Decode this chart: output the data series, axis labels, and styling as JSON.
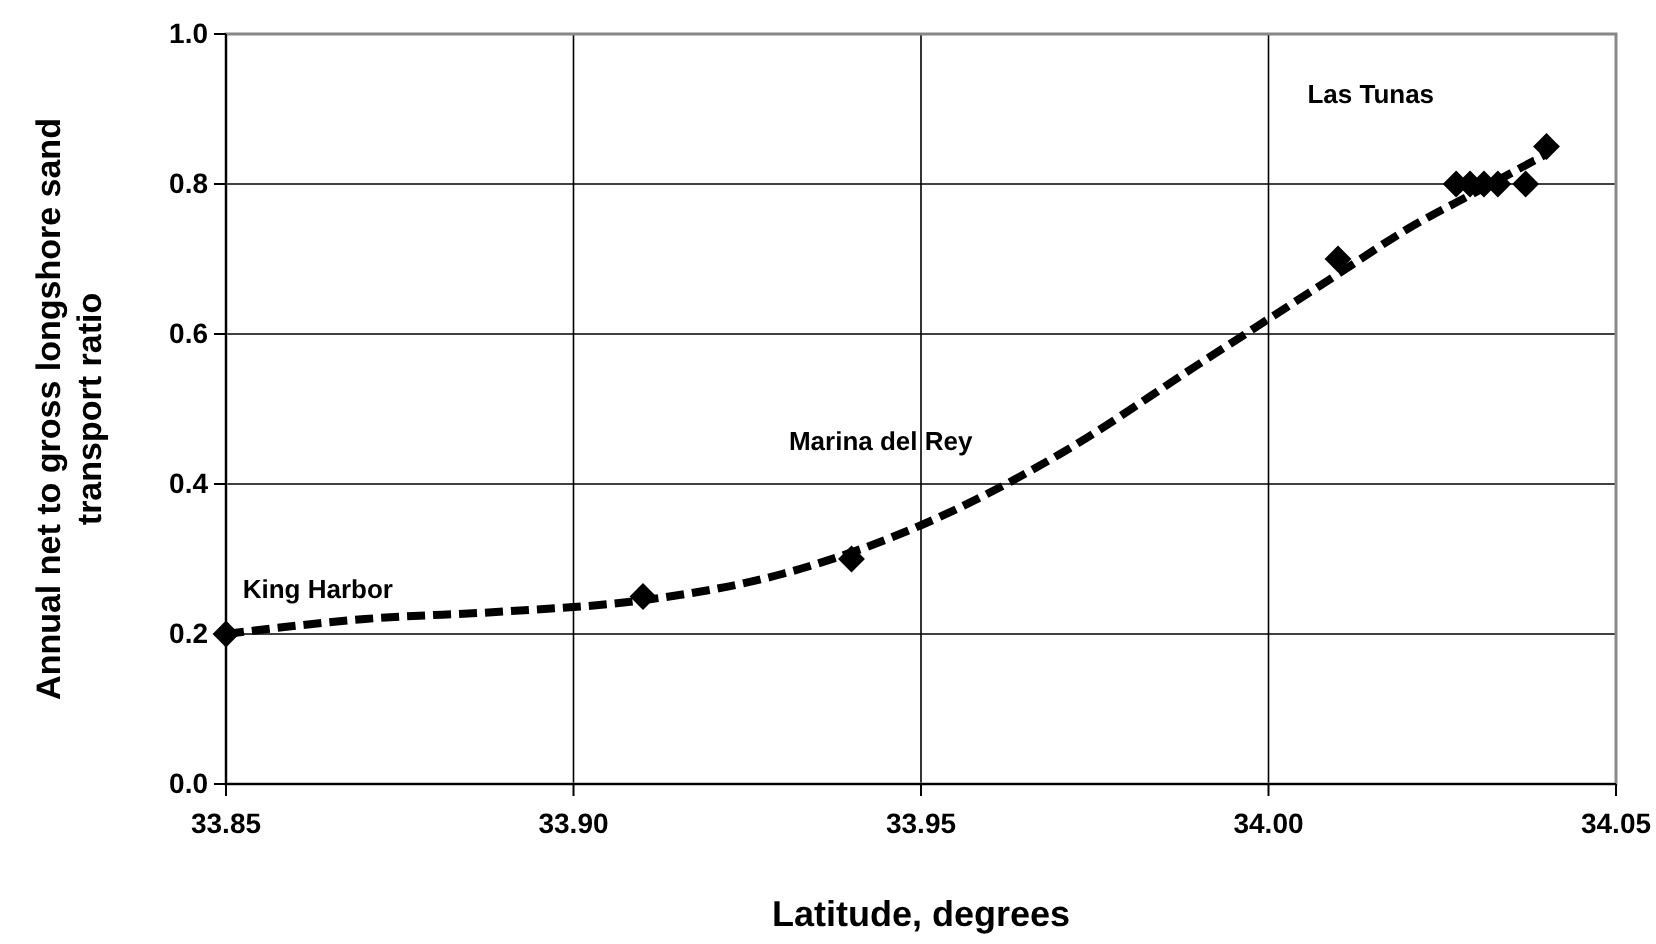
{
  "chart_data": {
    "type": "scatter",
    "xlabel": "Latitude, degrees",
    "ylabel": "Annual net to gross longshore sand transport ratio",
    "xlim": [
      33.85,
      34.05
    ],
    "xticks": [
      33.85,
      {
        "value": 33.9,
        "label": "33.90"
      },
      33.95,
      {
        "value": 34.0,
        "label": "34.00"
      },
      34.05
    ],
    "ylim": [
      0,
      1
    ],
    "yticks": [
      {
        "value": 0,
        "label": "0.0"
      },
      0.2,
      0.4,
      0.6,
      0.8,
      {
        "value": 1,
        "label": "1.0"
      }
    ],
    "grid": true,
    "series": [
      {
        "type": "line",
        "color": "#000000",
        "line_style": "dashed",
        "marker": "none",
        "x": [
          33.85,
          33.87,
          33.89,
          33.91,
          33.93,
          33.95,
          33.97,
          33.99,
          34.0,
          34.01,
          34.02,
          34.03,
          34.04
        ],
        "values": [
          0.2,
          0.22,
          0.23,
          0.245,
          0.28,
          0.345,
          0.44,
          0.56,
          0.62,
          0.68,
          0.74,
          0.79,
          0.84
        ]
      },
      {
        "color": "#000000",
        "marker": "diamond",
        "x": [
          33.85,
          33.91,
          33.94,
          34.01,
          34.027,
          34.029,
          34.031,
          34.033,
          34.037,
          34.04
        ],
        "values": [
          0.2,
          0.25,
          0.3,
          0.7,
          0.8,
          0.8,
          0.8,
          0.8,
          0.8,
          0.85
        ]
      }
    ],
    "annotations": [
      "King Harbor",
      "Marina del Rey",
      "Las Tunas"
    ]
  }
}
